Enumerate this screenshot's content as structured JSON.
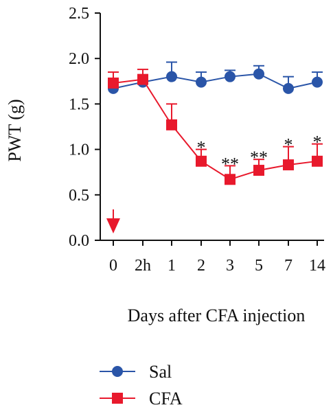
{
  "chart_data": {
    "type": "line",
    "title": "",
    "xlabel": "Days after CFA injection",
    "ylabel": "PWT (g)",
    "categories": [
      "0",
      "2h",
      "1",
      "2",
      "3",
      "5",
      "7",
      "14"
    ],
    "ylim": [
      0,
      2.5
    ],
    "yticks": [
      "0.0",
      "0.5",
      "1.0",
      "1.5",
      "2.0",
      "2.5"
    ],
    "grid": false,
    "legend_position": "bottom-left",
    "series": [
      {
        "name": "Sal",
        "color": "#2a55a8",
        "marker": "circle",
        "values": [
          1.67,
          1.74,
          1.8,
          1.74,
          1.8,
          1.83,
          1.67,
          1.74
        ],
        "error": [
          0.04,
          0.08,
          0.16,
          0.11,
          0.07,
          0.09,
          0.13,
          0.11
        ]
      },
      {
        "name": "CFA",
        "color": "#e8192c",
        "marker": "square",
        "values": [
          1.73,
          1.77,
          1.27,
          0.87,
          0.67,
          0.77,
          0.83,
          0.87
        ],
        "error": [
          0.12,
          0.11,
          0.23,
          0.13,
          0.15,
          0.12,
          0.2,
          0.19
        ]
      }
    ],
    "annotations": [
      {
        "category": "2",
        "text": "*"
      },
      {
        "category": "3",
        "text": "**"
      },
      {
        "category": "5",
        "text": "**"
      },
      {
        "category": "7",
        "text": "*"
      },
      {
        "category": "14",
        "text": "*"
      }
    ],
    "injection_marker": {
      "category": "0",
      "color": "#e8192c",
      "icon": "down-arrow-icon"
    }
  }
}
